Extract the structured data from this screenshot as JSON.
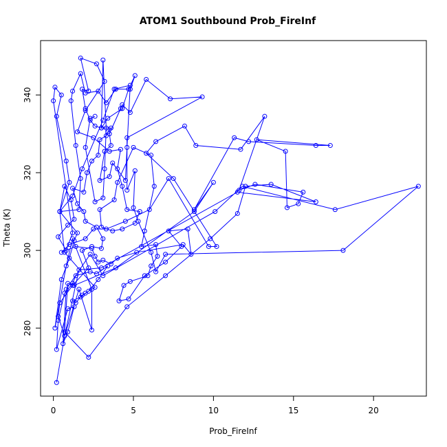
{
  "chart_data": {
    "type": "line",
    "markers": true,
    "title": "ATOM1 Southbound Prob_FireInf",
    "xlabel": "Prob_FireInf",
    "ylabel": "Theta (K)",
    "xlim": [
      -0.8,
      23.3
    ],
    "ylim": [
      262.5,
      354.0
    ],
    "xticks": [
      0,
      5,
      10,
      15,
      20
    ],
    "yticks": [
      280,
      300,
      320,
      340
    ],
    "grid": false,
    "legend": "none",
    "color": "#0000ff",
    "series": [
      {
        "points": [
          [
            0.2,
            266.0
          ],
          [
            0.7,
            278.0
          ],
          [
            0.3,
            283.0
          ],
          [
            0.4,
            286.5
          ],
          [
            1.2,
            291.0
          ],
          [
            2.2,
            295.5
          ],
          [
            1.8,
            300.0
          ],
          [
            2.4,
            301.0
          ],
          [
            3.0,
            300.5
          ],
          [
            3.1,
            303.0
          ],
          [
            2.7,
            306.0
          ],
          [
            2.0,
            307.5
          ],
          [
            1.9,
            310.0
          ],
          [
            1.5,
            312.0
          ],
          [
            1.2,
            316.0
          ],
          [
            1.9,
            315.0
          ],
          [
            2.1,
            320.0
          ],
          [
            2.4,
            323.0
          ],
          [
            2.8,
            324.5
          ],
          [
            2.9,
            328.5
          ],
          [
            3.3,
            329.5
          ],
          [
            3.4,
            330.5
          ],
          [
            3.6,
            331.5
          ],
          [
            3.0,
            331.5
          ],
          [
            2.6,
            332.0
          ],
          [
            2.3,
            333.5
          ],
          [
            2.0,
            336.5
          ],
          [
            1.8,
            341.5
          ],
          [
            2.2,
            341.0
          ],
          [
            1.7,
            349.5
          ],
          [
            2.7,
            348.0
          ],
          [
            3.2,
            343.5
          ],
          [
            2.0,
            336.0
          ],
          [
            1.5,
            330.5
          ],
          [
            2.5,
            329.0
          ],
          [
            3.5,
            325.5
          ],
          [
            4.2,
            326.0
          ],
          [
            4.0,
            321.0
          ],
          [
            4.3,
            316.5
          ],
          [
            4.6,
            310.5
          ],
          [
            5.4,
            310.0
          ],
          [
            5.1,
            307.0
          ],
          [
            4.3,
            305.5
          ],
          [
            3.7,
            305.0
          ],
          [
            3.0,
            306.0
          ],
          [
            2.9,
            310.5
          ],
          [
            3.8,
            313.0
          ],
          [
            4.0,
            317.5
          ],
          [
            5.0,
            326.5
          ],
          [
            6.1,
            324.5
          ],
          [
            6.3,
            316.5
          ],
          [
            5.7,
            305.0
          ],
          [
            5.5,
            301.0
          ],
          [
            6.4,
            301.5
          ],
          [
            6.5,
            298.5
          ],
          [
            6.1,
            296.0
          ],
          [
            5.9,
            293.5
          ],
          [
            4.8,
            292.0
          ],
          [
            4.4,
            291.0
          ],
          [
            4.1,
            287.0
          ],
          [
            4.7,
            287.5
          ],
          [
            5.7,
            293.5
          ],
          [
            7.0,
            297.0
          ],
          [
            8.0,
            301.0
          ],
          [
            7.2,
            305.0
          ],
          [
            8.4,
            305.5
          ],
          [
            8.6,
            299.0
          ],
          [
            8.1,
            301.5
          ],
          [
            5.2,
            299.5
          ],
          [
            4.0,
            298.0
          ],
          [
            3.6,
            296.5
          ],
          [
            3.1,
            297.5
          ],
          [
            2.8,
            297.0
          ],
          [
            2.6,
            298.5
          ],
          [
            2.4,
            300.5
          ],
          [
            1.4,
            301.0
          ],
          [
            0.5,
            299.5
          ],
          [
            1.0,
            301.5
          ],
          [
            2.0,
            303.0
          ],
          [
            2.5,
            305.5
          ],
          [
            3.3,
            305.5
          ],
          [
            4.5,
            307.5
          ],
          [
            6.0,
            310.5
          ],
          [
            7.2,
            318.5
          ],
          [
            9.7,
            301.0
          ],
          [
            10.2,
            301.0
          ],
          [
            7.5,
            318.5
          ],
          [
            5.8,
            325.0
          ],
          [
            6.4,
            328.0
          ],
          [
            8.2,
            332.0
          ],
          [
            8.9,
            327.0
          ],
          [
            11.7,
            326.0
          ],
          [
            13.2,
            334.5
          ],
          [
            11.6,
            315.5
          ],
          [
            12.6,
            317.0
          ],
          [
            15.6,
            315.0
          ],
          [
            15.3,
            312.0
          ],
          [
            14.6,
            311.0
          ],
          [
            14.5,
            325.5
          ],
          [
            12.7,
            328.5
          ],
          [
            17.3,
            327.0
          ],
          [
            16.4,
            327.0
          ],
          [
            12.2,
            328.0
          ],
          [
            11.3,
            329.0
          ],
          [
            8.8,
            310.5
          ],
          [
            10.0,
            317.5
          ],
          [
            8.8,
            310.0
          ],
          [
            3.9,
            295.5
          ],
          [
            1.3,
            291.0
          ],
          [
            0.9,
            291.5
          ],
          [
            0.7,
            279.0
          ],
          [
            2.2,
            272.5
          ],
          [
            4.6,
            285.5
          ],
          [
            7.0,
            293.5
          ],
          [
            9.8,
            303.0
          ],
          [
            11.5,
            309.5
          ],
          [
            12.0,
            316.5
          ],
          [
            13.6,
            317.0
          ],
          [
            16.4,
            312.5
          ],
          [
            11.5,
            315.0
          ],
          [
            3.0,
            295.5
          ],
          [
            1.6,
            295.0
          ],
          [
            0.7,
            278.0
          ],
          [
            1.6,
            290.0
          ],
          [
            2.4,
            279.5
          ],
          [
            2.4,
            290.0
          ],
          [
            1.2,
            303.0
          ],
          [
            0.8,
            296.0
          ],
          [
            0.1,
            280.0
          ],
          [
            0.5,
            292.5
          ],
          [
            1.0,
            298.0
          ],
          [
            1.3,
            302.5
          ],
          [
            1.5,
            304.5
          ],
          [
            0.4,
            310.0
          ],
          [
            1.2,
            314.0
          ],
          [
            1.8,
            321.0
          ],
          [
            3.1,
            333.5
          ],
          [
            3.8,
            341.5
          ],
          [
            4.8,
            342.5
          ],
          [
            4.6,
            326.5
          ],
          [
            4.5,
            318.0
          ],
          [
            3.7,
            322.5
          ],
          [
            3.5,
            319.0
          ],
          [
            2.9,
            318.0
          ],
          [
            3.2,
            325.5
          ],
          [
            3.6,
            327.0
          ],
          [
            3.5,
            330.0
          ],
          [
            4.2,
            336.5
          ],
          [
            4.3,
            337.5
          ],
          [
            4.8,
            335.5
          ],
          [
            5.8,
            344.0
          ],
          [
            7.3,
            339.0
          ],
          [
            9.3,
            339.5
          ],
          [
            4.6,
            329.0
          ],
          [
            4.6,
            315.5
          ],
          [
            5.1,
            320.5
          ],
          [
            5.0,
            311.0
          ],
          [
            5.3,
            307.5
          ],
          [
            6.1,
            299.5
          ],
          [
            6.4,
            294.5
          ],
          [
            7.0,
            299.0
          ],
          [
            18.1,
            300.0
          ],
          [
            22.8,
            316.5
          ],
          [
            17.6,
            310.5
          ],
          [
            11.8,
            316.5
          ],
          [
            10.1,
            310.0
          ],
          [
            3.1,
            293.5
          ],
          [
            2.3,
            299.0
          ],
          [
            0.8,
            290.0
          ],
          [
            0.6,
            276.0
          ],
          [
            0.9,
            279.0
          ],
          [
            1.3,
            285.5
          ],
          [
            0.9,
            285.0
          ],
          [
            0.2,
            274.5
          ],
          [
            0.3,
            282.0
          ],
          [
            0.7,
            289.0
          ],
          [
            1.2,
            291.5
          ],
          [
            1.4,
            293.5
          ],
          [
            2.3,
            294.5
          ],
          [
            2.7,
            294.0
          ],
          [
            3.4,
            296.0
          ],
          [
            2.8,
            292.5
          ],
          [
            2.2,
            289.5
          ],
          [
            1.7,
            288.0
          ],
          [
            1.2,
            287.0
          ],
          [
            1.4,
            286.5
          ],
          [
            1.8,
            288.5
          ],
          [
            2.0,
            289.0
          ],
          [
            2.6,
            290.5
          ],
          [
            0.7,
            299.5
          ],
          [
            0.4,
            310.0
          ],
          [
            0.7,
            316.5
          ],
          [
            1.1,
            313.0
          ],
          [
            1.3,
            308.0
          ],
          [
            0.9,
            306.5
          ],
          [
            0.3,
            303.5
          ],
          [
            0.8,
            300.0
          ],
          [
            1.2,
            304.5
          ],
          [
            0.0,
            338.5
          ],
          [
            0.1,
            342.0
          ],
          [
            0.5,
            340.0
          ],
          [
            0.2,
            334.5
          ],
          [
            0.8,
            323.0
          ],
          [
            1.0,
            317.5
          ],
          [
            0.4,
            310.0
          ],
          [
            1.6,
            310.5
          ],
          [
            1.7,
            318.5
          ],
          [
            1.4,
            327.0
          ],
          [
            1.1,
            338.5
          ],
          [
            1.2,
            341.0
          ],
          [
            1.7,
            345.5
          ],
          [
            2.0,
            340.5
          ],
          [
            2.8,
            341.0
          ],
          [
            3.3,
            338.0
          ],
          [
            3.9,
            341.5
          ],
          [
            4.8,
            341.5
          ],
          [
            5.1,
            345.0
          ],
          [
            4.7,
            341.5
          ],
          [
            4.3,
            336.5
          ],
          [
            3.4,
            334.0
          ],
          [
            3.0,
            331.5
          ],
          [
            3.1,
            349.0
          ],
          [
            3.3,
            331.5
          ],
          [
            3.2,
            321.0
          ],
          [
            3.1,
            313.5
          ],
          [
            2.6,
            312.5
          ],
          [
            2.0,
            326.5
          ],
          [
            2.3,
            334.0
          ],
          [
            2.6,
            334.5
          ]
        ]
      }
    ]
  }
}
